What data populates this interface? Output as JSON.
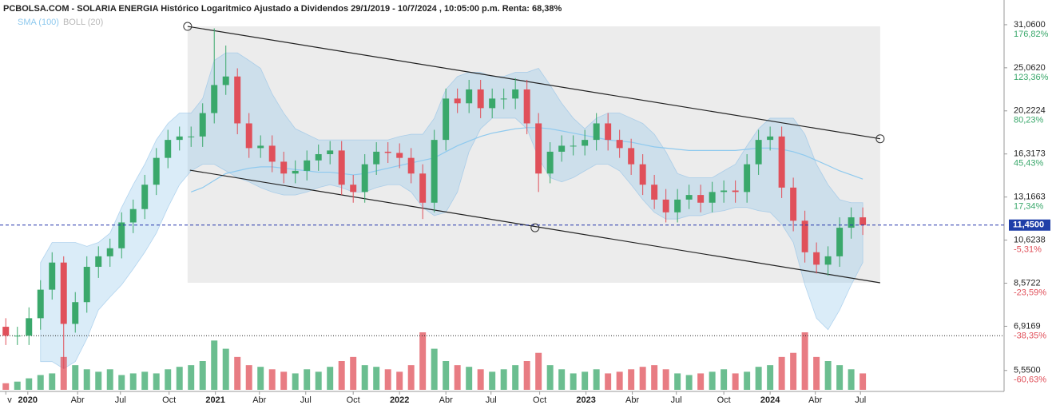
{
  "chart_data": {
    "type": "candlestick",
    "title": "PCBOLSA.COM - SOLARIA ENERGIA Histórico Logaritmico Ajustado a Dividendos 29/1/2019 - 10/7/2024 , 10:05:00 p.m. Renta: 68,38%",
    "legend": [
      {
        "name": "SMA (100)",
        "color": "#8ec9ee"
      },
      {
        "name": "BOLL (20)",
        "color": "#b8b8b8"
      }
    ],
    "log_scale": true,
    "up_color": "#3aa86b",
    "down_color": "#e0505a",
    "xlim": [
      -0.5,
      86.2
    ],
    "xticks": [
      {
        "value": 0,
        "label": "v"
      },
      {
        "value": 1.9,
        "label": "2020"
      },
      {
        "value": 6.2,
        "label": "Abr"
      },
      {
        "value": 9.9,
        "label": "Jul"
      },
      {
        "value": 14.1,
        "label": "Oct"
      },
      {
        "value": 18.1,
        "label": "2021"
      },
      {
        "value": 21.9,
        "label": "Abr"
      },
      {
        "value": 25.9,
        "label": "Jul"
      },
      {
        "value": 30,
        "label": "Oct"
      },
      {
        "value": 34,
        "label": "2022"
      },
      {
        "value": 38,
        "label": "Abr"
      },
      {
        "value": 41.9,
        "label": "Jul"
      },
      {
        "value": 46.1,
        "label": "Oct"
      },
      {
        "value": 50.1,
        "label": "2023"
      },
      {
        "value": 54.1,
        "label": "Abr"
      },
      {
        "value": 57.9,
        "label": "Jul"
      },
      {
        "value": 62,
        "label": "Oct"
      },
      {
        "value": 66,
        "label": "2024"
      },
      {
        "value": 69.9,
        "label": "Abr"
      },
      {
        "value": 73.8,
        "label": "Jul"
      }
    ],
    "ylim": [
      5.0,
      32.7
    ],
    "yticks": [
      {
        "value": 31.06,
        "label": "31,0600"
      },
      {
        "value": 25.062,
        "label": "25,0620"
      },
      {
        "value": 20.2224,
        "label": "20,2224"
      },
      {
        "value": 16.3173,
        "label": "16,3173"
      },
      {
        "value": 13.1663,
        "label": "13,1663"
      },
      {
        "value": 10.6238,
        "label": "10,6238"
      },
      {
        "value": 8.5722,
        "label": "8,5722"
      },
      {
        "value": 6.9169,
        "label": "6,9169"
      },
      {
        "value": 5.55,
        "label": "5,5500"
      }
    ],
    "ytick_changes": [
      "176,82%",
      "123,36%",
      "80,23%",
      "45,43%",
      "17,34%",
      "-5,31%",
      "-23,59%",
      "-38,35%",
      "-60,63%"
    ],
    "last_price": {
      "value": 11.45,
      "label": "11,4500"
    },
    "reference_level": 6.6,
    "open": [
      6.9,
      6.6,
      6.6,
      7.2,
      8.3,
      9.5,
      7.0,
      7.8,
      9.3,
      9.8,
      10.2,
      11.6,
      12.4,
      14.0,
      16.0,
      17.5,
      17.8,
      17.8,
      20.0,
      23.0,
      24.0,
      19.0,
      16.8,
      17.0,
      15.7,
      14.8,
      15.0,
      15.8,
      16.3,
      16.6,
      14.0,
      13.5,
      15.5,
      16.5,
      16.4,
      16.0,
      14.8,
      12.8,
      17.5,
      21.5,
      21.0,
      22.5,
      20.5,
      21.5,
      21.5,
      22.5,
      19.0,
      14.8,
      16.5,
      17.0,
      17.0,
      17.5,
      19.0,
      17.5,
      16.8,
      15.5,
      14.0,
      13.0,
      12.2,
      13.0,
      13.3,
      12.8,
      13.5,
      13.6,
      13.5,
      15.5,
      17.5,
      17.8,
      13.8,
      11.7,
      10.0,
      9.4,
      9.8,
      11.3,
      11.9
    ],
    "high": [
      7.2,
      6.9,
      7.6,
      8.7,
      10.0,
      9.8,
      8.2,
      9.8,
      10.3,
      10.7,
      12.2,
      13.0,
      14.7,
      16.8,
      18.4,
      18.7,
      18.7,
      21.0,
      30.5,
      28.0,
      25.0,
      20.0,
      17.9,
      17.9,
      16.5,
      15.8,
      16.6,
      17.1,
      17.4,
      17.4,
      14.7,
      16.3,
      17.3,
      17.3,
      17.2,
      16.8,
      15.5,
      18.4,
      22.6,
      22.6,
      23.6,
      23.6,
      22.6,
      22.6,
      23.8,
      23.6,
      20.0,
      17.3,
      17.9,
      17.9,
      18.4,
      20.0,
      20.0,
      18.4,
      17.6,
      16.3,
      14.7,
      13.7,
      13.7,
      14.0,
      14.0,
      14.2,
      14.3,
      14.3,
      16.3,
      18.4,
      18.7,
      18.7,
      14.5,
      12.3,
      10.5,
      10.3,
      11.9,
      12.5,
      12.5
    ],
    "low": [
      6.3,
      6.3,
      6.3,
      6.8,
      7.9,
      5.6,
      6.7,
      7.4,
      8.8,
      9.3,
      9.7,
      11.0,
      11.8,
      13.3,
      15.2,
      16.6,
      16.9,
      16.9,
      19.0,
      21.9,
      18.0,
      16.0,
      16.0,
      14.9,
      14.1,
      14.1,
      14.3,
      15.0,
      15.5,
      13.3,
      12.8,
      12.8,
      14.7,
      15.6,
      15.2,
      14.1,
      11.8,
      12.2,
      16.6,
      20.0,
      20.0,
      19.5,
      19.5,
      20.4,
      20.4,
      18.0,
      13.5,
      14.1,
      15.7,
      16.2,
      16.2,
      16.6,
      16.6,
      16.0,
      14.7,
      13.3,
      12.4,
      11.6,
      11.6,
      12.4,
      12.2,
      12.2,
      12.8,
      12.8,
      12.8,
      14.7,
      16.6,
      13.1,
      11.1,
      9.5,
      9.0,
      8.9,
      9.3,
      10.7,
      10.9
    ],
    "close": [
      6.6,
      6.6,
      7.2,
      8.3,
      9.5,
      7.0,
      7.8,
      9.3,
      9.8,
      10.2,
      11.6,
      12.4,
      14.0,
      16.0,
      17.5,
      17.8,
      17.8,
      20.0,
      23.0,
      24.0,
      19.0,
      16.8,
      17.0,
      15.7,
      14.8,
      15.0,
      15.8,
      16.3,
      16.6,
      14.0,
      13.5,
      15.5,
      16.5,
      16.4,
      16.0,
      14.8,
      12.8,
      17.5,
      21.5,
      21.0,
      22.5,
      20.5,
      21.5,
      21.5,
      22.5,
      19.0,
      14.8,
      16.5,
      17.0,
      17.0,
      17.5,
      19.0,
      17.5,
      16.8,
      15.5,
      14.0,
      13.0,
      12.2,
      13.0,
      13.3,
      12.8,
      13.5,
      13.6,
      13.5,
      15.5,
      17.5,
      17.8,
      13.8,
      11.7,
      10.0,
      9.4,
      9.8,
      11.3,
      11.9,
      11.45
    ],
    "volume": [
      8,
      10,
      14,
      18,
      20,
      40,
      30,
      25,
      22,
      25,
      18,
      20,
      22,
      20,
      25,
      28,
      30,
      35,
      60,
      50,
      40,
      30,
      28,
      25,
      22,
      20,
      25,
      22,
      28,
      35,
      40,
      30,
      28,
      25,
      22,
      30,
      70,
      50,
      35,
      30,
      28,
      25,
      22,
      25,
      30,
      35,
      45,
      30,
      25,
      20,
      22,
      25,
      20,
      22,
      25,
      28,
      30,
      25,
      20,
      18,
      20,
      22,
      25,
      20,
      22,
      28,
      30,
      40,
      45,
      70,
      40,
      35,
      30,
      25,
      20
    ],
    "bollinger_upper": [
      null,
      null,
      null,
      9.5,
      10.5,
      10.5,
      10.5,
      10.3,
      10.5,
      11.0,
      12.5,
      14,
      15.5,
      17.5,
      19,
      20,
      20,
      21.5,
      26,
      27,
      27,
      26,
      25,
      22,
      20,
      18.5,
      18,
      17.5,
      17.5,
      17.5,
      17.5,
      17.5,
      17.5,
      17.5,
      17.8,
      18,
      18,
      19.5,
      22.5,
      24,
      24.5,
      24.5,
      24,
      24,
      24.5,
      24.5,
      25,
      23,
      21,
      19.5,
      18.5,
      19.5,
      20,
      20,
      19.5,
      19,
      18,
      16.5,
      14.8,
      14.5,
      14.5,
      14.5,
      15,
      15.5,
      17,
      18.5,
      19.5,
      19.5,
      19.5,
      18,
      15.5,
      14,
      13,
      12.8,
      12.8
    ],
    "bollinger_lower": [
      null,
      null,
      null,
      5.8,
      5.8,
      5.6,
      5.8,
      6.5,
      7.5,
      8.0,
      8.5,
      9.2,
      10.0,
      11.0,
      12.5,
      14,
      15,
      15.5,
      15.5,
      15,
      14.5,
      14.2,
      13.8,
      13.5,
      13.3,
      13.3,
      13.5,
      13.8,
      14,
      13.8,
      13.5,
      13.5,
      13.8,
      14,
      14,
      13.5,
      12.5,
      12.0,
      12.2,
      13.5,
      16.5,
      18.5,
      19.5,
      19.5,
      19.5,
      18.5,
      16,
      14.5,
      14.2,
      14.5,
      15,
      15.5,
      15.5,
      15,
      14,
      13,
      12.2,
      11.8,
      11.8,
      12,
      12,
      12.2,
      12.3,
      12.5,
      12.5,
      12.3,
      12.2,
      11.5,
      10.5,
      8.5,
      7.2,
      6.8,
      7.5,
      8.5,
      9.5
    ],
    "sma100": [
      null,
      null,
      null,
      null,
      null,
      null,
      null,
      null,
      null,
      null,
      null,
      null,
      null,
      null,
      null,
      null,
      13.5,
      13.8,
      14.3,
      14.8,
      15.0,
      15.2,
      15.3,
      15.3,
      15.2,
      15.1,
      15.0,
      14.9,
      14.9,
      14.8,
      14.7,
      14.8,
      15.0,
      15.2,
      15.4,
      15.6,
      15.8,
      16.0,
      16.5,
      17.0,
      17.4,
      17.8,
      18.1,
      18.3,
      18.5,
      18.6,
      18.6,
      18.5,
      18.3,
      18.1,
      17.9,
      17.7,
      17.5,
      17.4,
      17.3,
      17.1,
      16.9,
      16.8,
      16.7,
      16.6,
      16.6,
      16.6,
      16.6,
      16.6,
      16.7,
      16.8,
      16.8,
      16.7,
      16.5,
      16.2,
      15.8,
      15.4,
      15.0,
      14.7,
      14.4
    ],
    "channel": {
      "upper": {
        "x": [
          15.7,
          75.5
        ],
        "y": [
          30.8,
          17.6
        ]
      },
      "lower": {
        "x": [
          15.9,
          75.5
        ],
        "y": [
          15.05,
          8.59
        ]
      },
      "handles": {
        "x": [
          15.7,
          75.5,
          45.7
        ],
        "y": [
          30.8,
          17.6,
          11.3
        ]
      }
    }
  }
}
